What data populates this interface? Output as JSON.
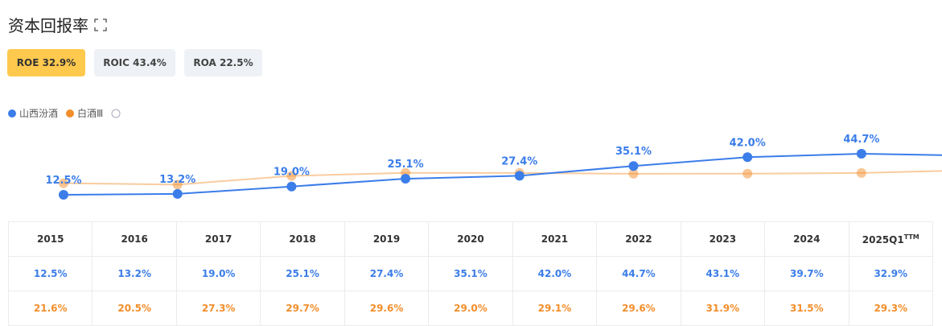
{
  "header": {
    "title": "资本回报率",
    "tabs": [
      "ROE 32.9%",
      "ROIC 43.4%",
      "ROA 22.5%"
    ]
  },
  "chart_data": {
    "type": "line",
    "categories": [
      "2015",
      "2016",
      "2017",
      "2018",
      "2019",
      "2020",
      "2021",
      "2022",
      "2023",
      "2024",
      "2025Q1"
    ],
    "category_note": "TTM",
    "series": [
      {
        "name": "山西汾酒",
        "color": "#3b7de9",
        "values": [
          12.5,
          13.2,
          19.0,
          25.1,
          27.4,
          35.1,
          42.0,
          44.7,
          43.1,
          39.7,
          32.9
        ],
        "value_labels": [
          "12.5%",
          "13.2%",
          "19.0%",
          "25.1%",
          "27.4%",
          "35.1%",
          "42.0%",
          "44.7%",
          "43.1%",
          "39.7%",
          "32.9%"
        ]
      },
      {
        "name": "白酒Ⅲ",
        "color": "#f28e2b",
        "values": [
          21.6,
          20.5,
          27.3,
          29.7,
          29.6,
          29.0,
          29.1,
          29.6,
          31.9,
          31.5,
          29.3
        ],
        "value_labels": [
          "21.6%",
          "20.5%",
          "27.3%",
          "29.7%",
          "29.6%",
          "29.0%",
          "29.1%",
          "29.6%",
          "31.9%",
          "31.5%",
          "29.3%"
        ]
      }
    ]
  }
}
